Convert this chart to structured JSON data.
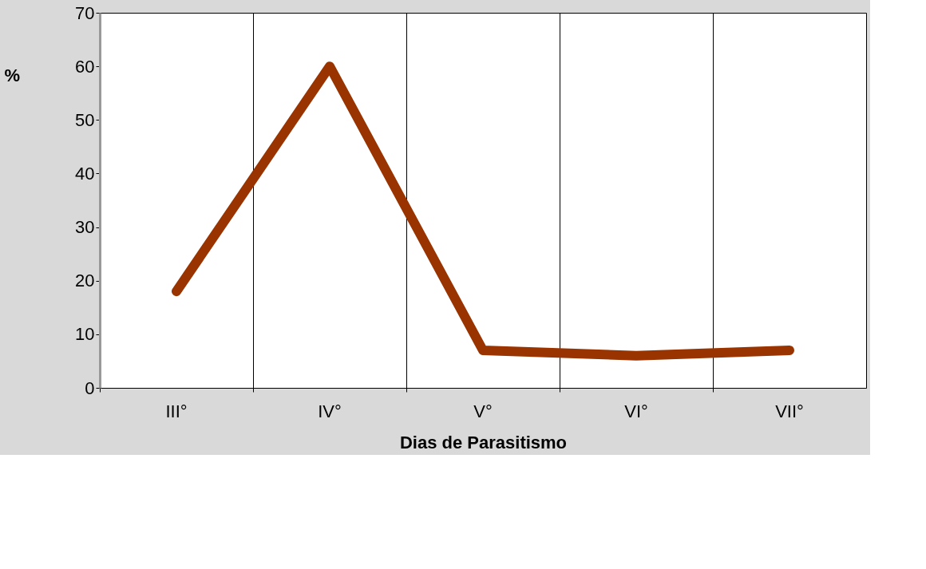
{
  "chart_data": {
    "type": "line",
    "xlabel": "Dias de Parasitismo",
    "ylabel": "%",
    "categories": [
      "III°",
      "IV°",
      "V°",
      "VI°",
      "VII°"
    ],
    "series": [
      {
        "color": "#993300",
        "values": [
          18,
          60,
          7,
          6,
          7
        ]
      }
    ],
    "ylim": [
      0,
      70
    ],
    "yticks": [
      0,
      10,
      20,
      30,
      40,
      50,
      60,
      70
    ],
    "grid": "x",
    "line_style": "solid"
  }
}
